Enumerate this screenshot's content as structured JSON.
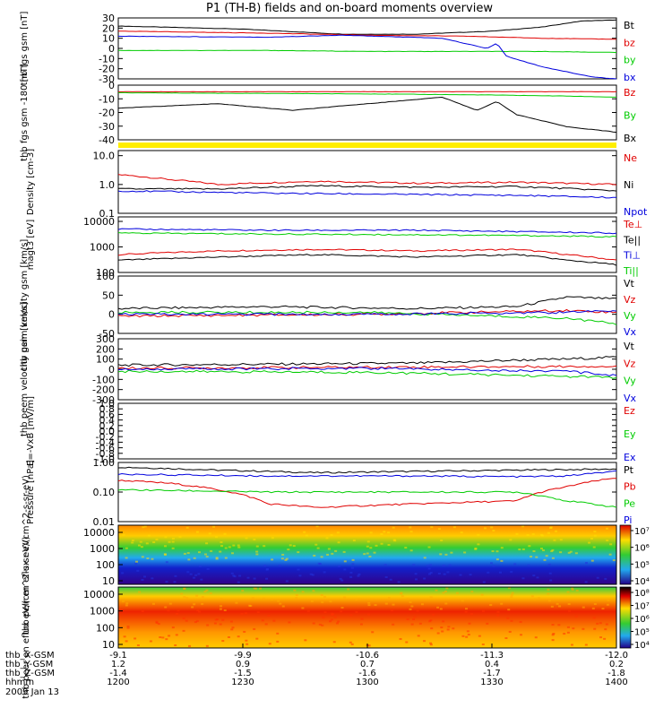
{
  "title": "P1 (TH-B) fields and on-board moments overview",
  "colors": {
    "black": "#000000",
    "red": "#e00000",
    "green": "#00cc00",
    "blue": "#0000dd",
    "yellow": "#ffee00"
  },
  "chart_data": [
    {
      "type": "line",
      "ylabel": "thb fgs gsm [nT]",
      "ylim": [
        -30,
        30
      ],
      "ticks": [
        "30",
        "20",
        "10",
        "0",
        "-10",
        "-20",
        "-30"
      ],
      "series": [
        {
          "name": "Bt",
          "color": "black",
          "x": [
            0,
            0.25,
            0.45,
            0.6,
            0.75,
            0.85,
            0.93,
            1.0
          ],
          "values": [
            22,
            19,
            14,
            14,
            17,
            21,
            27,
            28
          ]
        },
        {
          "name": "bz",
          "color": "red",
          "x": [
            0,
            0.3,
            0.5,
            0.7,
            0.85,
            1.0
          ],
          "values": [
            17,
            15,
            13,
            12,
            10,
            9
          ]
        },
        {
          "name": "by",
          "color": "green",
          "x": [
            0,
            0.3,
            0.5,
            0.7,
            0.85,
            1.0
          ],
          "values": [
            -2,
            -2,
            -3,
            -3,
            -3,
            -4
          ]
        },
        {
          "name": "bx",
          "color": "blue",
          "x": [
            0,
            0.3,
            0.45,
            0.65,
            0.74,
            0.76,
            0.78,
            0.85,
            0.95,
            1.0
          ],
          "values": [
            12,
            11,
            13,
            10,
            0,
            5,
            -8,
            -18,
            -28,
            -30
          ]
        }
      ]
    },
    {
      "type": "line",
      "ylabel": "thb fgs gsm -180 [nT]",
      "ylim": [
        -45,
        5
      ],
      "ticks": [
        "0",
        "-10",
        "-20",
        "-30",
        "-40"
      ],
      "series": [
        {
          "name": "Bz",
          "color": "red",
          "x": [
            0,
            0.5,
            1.0
          ],
          "values": [
            -1,
            -1,
            -1
          ]
        },
        {
          "name": "By",
          "color": "green",
          "x": [
            0,
            0.5,
            0.75,
            0.9,
            1.0
          ],
          "values": [
            -2,
            -3,
            -4,
            -5,
            -6
          ]
        },
        {
          "name": "Bx",
          "color": "black",
          "x": [
            0,
            0.2,
            0.35,
            0.55,
            0.65,
            0.72,
            0.76,
            0.8,
            0.9,
            1.0
          ],
          "values": [
            -16,
            -12,
            -18,
            -10,
            -6,
            -18,
            -10,
            -22,
            -33,
            -38
          ]
        }
      ]
    },
    {
      "type": "line",
      "ylabel": "Density [cm-3]",
      "ylim": [
        0.1,
        15
      ],
      "scale": "log",
      "ticks": [
        "10.0",
        "1.0",
        "0.1"
      ],
      "series": [
        {
          "name": "Ne",
          "color": "red",
          "x": [
            0,
            0.1,
            0.2,
            0.4,
            0.6,
            0.8,
            1.0
          ],
          "values": [
            2.2,
            1.5,
            1.0,
            1.3,
            1.1,
            1.2,
            1.0
          ]
        },
        {
          "name": "Ni",
          "color": "black",
          "x": [
            0,
            0.2,
            0.4,
            0.6,
            0.8,
            1.0
          ],
          "values": [
            0.7,
            0.7,
            0.9,
            0.8,
            0.85,
            0.6
          ]
        },
        {
          "name": "Npot",
          "color": "blue",
          "x": [
            0,
            0.3,
            0.6,
            0.8,
            1.0
          ],
          "values": [
            0.6,
            0.5,
            0.45,
            0.42,
            0.35
          ]
        }
      ]
    },
    {
      "type": "line",
      "ylabel": "magt3 [eV]",
      "ylim": [
        100,
        15000
      ],
      "scale": "log",
      "ticks": [
        "10000",
        "1000",
        "100"
      ],
      "series": [
        {
          "name": "Te⊥",
          "color": "red",
          "x": [
            0,
            0.2,
            0.4,
            0.6,
            0.8,
            0.9,
            1.0
          ],
          "values": [
            500,
            700,
            800,
            700,
            800,
            500,
            300
          ]
        },
        {
          "name": "Te||",
          "color": "black",
          "x": [
            0,
            0.2,
            0.4,
            0.6,
            0.8,
            0.9,
            1.0
          ],
          "values": [
            300,
            400,
            500,
            400,
            500,
            300,
            200
          ]
        },
        {
          "name": "Ti⊥",
          "color": "blue",
          "x": [
            0,
            0.3,
            0.6,
            0.8,
            1.0
          ],
          "values": [
            5000,
            4500,
            4500,
            4000,
            3500
          ]
        },
        {
          "name": "Ti||",
          "color": "green",
          "x": [
            0,
            0.3,
            0.6,
            0.8,
            1.0
          ],
          "values": [
            3500,
            3200,
            3000,
            2800,
            2500
          ]
        }
      ]
    },
    {
      "type": "line",
      "ylabel": "thb peim velocity gsm [km/s]",
      "ylim": [
        -50,
        100
      ],
      "ticks": [
        "100",
        "50",
        "0",
        "-50"
      ],
      "series": [
        {
          "name": "Vt",
          "color": "black",
          "x": [
            0,
            0.3,
            0.6,
            0.8,
            0.9,
            1.0
          ],
          "values": [
            15,
            20,
            15,
            20,
            45,
            40
          ]
        },
        {
          "name": "Vz",
          "color": "red",
          "x": [
            0,
            0.5,
            0.9,
            1.0
          ],
          "values": [
            -5,
            0,
            10,
            5
          ]
        },
        {
          "name": "Vy",
          "color": "green",
          "x": [
            0,
            0.5,
            0.9,
            1.0
          ],
          "values": [
            5,
            5,
            -10,
            -25
          ]
        },
        {
          "name": "Vx",
          "color": "blue",
          "x": [
            0,
            0.5,
            0.9,
            1.0
          ],
          "values": [
            0,
            0,
            5,
            10
          ]
        }
      ]
    },
    {
      "type": "line",
      "ylabel": "thb peem velocity gsm [km/s]",
      "ylim": [
        -300,
        300
      ],
      "ticks": [
        "300",
        "200",
        "100",
        "0",
        "-100",
        "-200",
        "-300"
      ],
      "series": [
        {
          "name": "Vt",
          "color": "black",
          "x": [
            0,
            0.3,
            0.6,
            0.8,
            0.9,
            1.0
          ],
          "values": [
            40,
            50,
            60,
            90,
            100,
            120
          ]
        },
        {
          "name": "Vz",
          "color": "red",
          "x": [
            0,
            0.5,
            1.0
          ],
          "values": [
            10,
            20,
            30
          ]
        },
        {
          "name": "Vy",
          "color": "green",
          "x": [
            0,
            0.5,
            0.8,
            1.0
          ],
          "values": [
            -20,
            -30,
            -60,
            -80
          ]
        },
        {
          "name": "Vx",
          "color": "blue",
          "x": [
            0,
            0.5,
            0.9,
            1.0
          ],
          "values": [
            0,
            10,
            -20,
            -60
          ]
        }
      ]
    },
    {
      "type": "line",
      "ylabel": "E=-VxB [mV/m]",
      "ylim": [
        -1.0,
        1.0
      ],
      "ticks": [
        "1.0",
        "0.8",
        "0.6",
        "0.4",
        "0.2",
        "0.0",
        "-0.2",
        "-0.4",
        "-0.6",
        "-0.8",
        "-1.0"
      ],
      "series": [
        {
          "name": "Ez",
          "color": "red",
          "x": [],
          "values": []
        },
        {
          "name": "Ey",
          "color": "green",
          "x": [],
          "values": []
        },
        {
          "name": "Ex",
          "color": "blue",
          "x": [],
          "values": []
        }
      ]
    },
    {
      "type": "line",
      "ylabel": "Pressure [nPa]",
      "ylim": [
        0.01,
        1.0
      ],
      "scale": "log",
      "ticks": [
        "1.00",
        "0.10",
        "0.01"
      ],
      "series": [
        {
          "name": "Pt",
          "color": "black",
          "x": [
            0,
            0.2,
            0.4,
            0.6,
            0.8,
            1.0
          ],
          "values": [
            0.7,
            0.55,
            0.45,
            0.5,
            0.55,
            0.6
          ]
        },
        {
          "name": "Pb",
          "color": "red",
          "x": [
            0,
            0.1,
            0.2,
            0.3,
            0.4,
            0.6,
            0.8,
            0.9,
            1.0
          ],
          "values": [
            0.25,
            0.2,
            0.12,
            0.04,
            0.03,
            0.04,
            0.05,
            0.15,
            0.3
          ]
        },
        {
          "name": "Pe",
          "color": "green",
          "x": [
            0,
            0.3,
            0.6,
            0.8,
            0.9,
            1.0
          ],
          "values": [
            0.12,
            0.1,
            0.1,
            0.1,
            0.05,
            0.03
          ]
        },
        {
          "name": "Pi",
          "color": "blue",
          "x": [
            0,
            0.3,
            0.6,
            0.8,
            0.9,
            1.0
          ],
          "values": [
            0.4,
            0.35,
            0.35,
            0.33,
            0.35,
            0.5
          ]
        }
      ]
    },
    {
      "type": "heatmap",
      "ylabel": "thb peir en eflux eV/(cm^2-s-sr-eV)",
      "yticks": [
        "10000",
        "1000",
        "100",
        "10"
      ],
      "colorbar_ticks": [
        "10⁷",
        "10⁶",
        "10⁵",
        "10⁴"
      ]
    },
    {
      "type": "heatmap",
      "ylabel": "thb peer en eflux eV/(cm^2-s-sr-eV)",
      "yticks": [
        "10000",
        "1000",
        "100",
        "10"
      ],
      "colorbar_ticks": [
        "10⁸",
        "10⁷",
        "10⁶",
        "10⁵",
        "10⁴"
      ]
    }
  ],
  "xaxis": {
    "rows": [
      {
        "label": "thb_X-GSM",
        "values": [
          "-9.1",
          "-9.9",
          "-10.6",
          "-11.3",
          "-12.0"
        ]
      },
      {
        "label": "thb_Y-GSM",
        "values": [
          "1.2",
          "0.9",
          "0.7",
          "0.4",
          "0.2"
        ]
      },
      {
        "label": "thb_Z-GSM",
        "values": [
          "-1.4",
          "-1.5",
          "-1.6",
          "-1.7",
          "-1.8"
        ]
      },
      {
        "label": "hhmm",
        "values": [
          "1200",
          "1230",
          "1300",
          "1330",
          "1400"
        ]
      }
    ],
    "date": "2009 Jan 13"
  }
}
